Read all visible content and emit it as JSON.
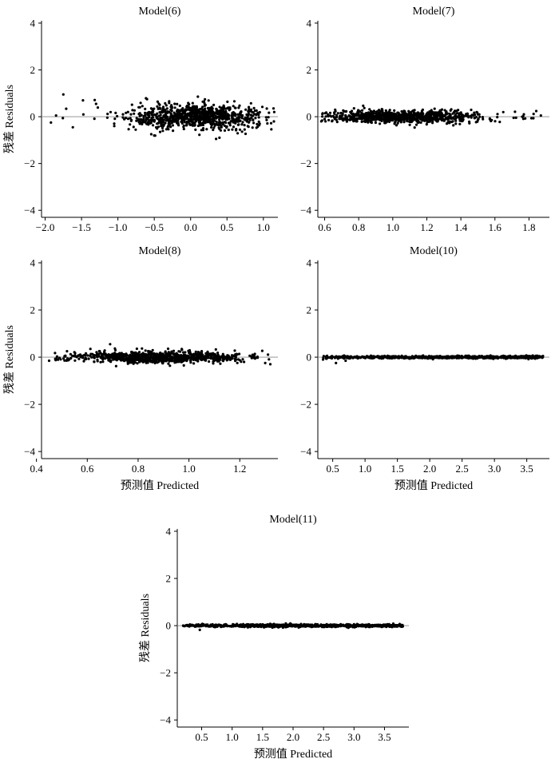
{
  "chart_data": [
    {
      "type": "scatter",
      "title": "Model(6)",
      "ylabel": "残差 Residuals",
      "xlabel": "",
      "xlim": [
        -2.05,
        1.2
      ],
      "ylim": [
        -4.3,
        4.1
      ],
      "xticks": [
        -2.0,
        -1.5,
        -1.0,
        -0.5,
        0.0,
        0.5,
        1.0
      ],
      "xtick_labels": [
        "−2.0",
        "−1.5",
        "−1.0",
        "−0.5",
        "0.0",
        "0.5",
        "1.0"
      ],
      "yticks": [
        -4,
        -2,
        0,
        2,
        4
      ],
      "ytick_labels": [
        "−4",
        "−2",
        "0",
        "2",
        "4"
      ],
      "reference_line_y": 0,
      "points_summary": {
        "count": 900,
        "x_range": [
          -1.95,
          1.15
        ],
        "center": 0.1,
        "spread": 0.45,
        "residual_amplitude": 0.6
      },
      "points": [
        {
          "x": -1.75,
          "y": 0.95
        },
        {
          "x": -1.92,
          "y": -0.25
        },
        {
          "x": -1.85,
          "y": 0.05
        },
        {
          "x": -1.48,
          "y": 0.7
        },
        {
          "x": -0.42,
          "y": -0.65
        },
        {
          "x": 0.35,
          "y": -0.95
        },
        {
          "x": -1.05,
          "y": -0.4
        },
        {
          "x": -0.6,
          "y": 0.75
        },
        {
          "x": 1.15,
          "y": 0.2
        },
        {
          "x": 0.95,
          "y": -0.3
        },
        {
          "x": -1.3,
          "y": 0.55
        },
        {
          "x": -1.62,
          "y": -0.45
        }
      ]
    },
    {
      "type": "scatter",
      "title": "Model(7)",
      "ylabel": "",
      "xlabel": "",
      "xlim": [
        0.56,
        1.92
      ],
      "ylim": [
        -4.3,
        4.1
      ],
      "xticks": [
        0.6,
        0.8,
        1.0,
        1.2,
        1.4,
        1.6,
        1.8
      ],
      "xtick_labels": [
        "0.6",
        "0.8",
        "1.0",
        "1.2",
        "1.4",
        "1.6",
        "1.8"
      ],
      "yticks": [
        -4,
        -2,
        0,
        2,
        4
      ],
      "ytick_labels": [
        "−4",
        "−2",
        "0",
        "2",
        "4"
      ],
      "reference_line_y": 0,
      "points_summary": {
        "count": 900,
        "x_range": [
          0.58,
          1.87
        ],
        "center": 1.05,
        "spread": 0.22,
        "residual_amplitude": 0.28
      },
      "points": [
        {
          "x": 1.87,
          "y": 0.05
        },
        {
          "x": 1.76,
          "y": 0.0
        },
        {
          "x": 1.71,
          "y": -0.05
        },
        {
          "x": 0.58,
          "y": -0.2
        },
        {
          "x": 0.6,
          "y": -0.1
        },
        {
          "x": 1.1,
          "y": -0.35
        }
      ]
    },
    {
      "type": "scatter",
      "title": "Model(8)",
      "ylabel": "残差 Residuals",
      "xlabel": "预测值 Predicted",
      "xlim": [
        0.42,
        1.35
      ],
      "ylim": [
        -4.3,
        4.1
      ],
      "xticks": [
        0.4,
        0.6,
        0.8,
        1.0,
        1.2
      ],
      "xtick_labels": [
        "0.4",
        "0.6",
        "0.8",
        "1.0",
        "1.2"
      ],
      "yticks": [
        -4,
        -2,
        0,
        2,
        4
      ],
      "ytick_labels": [
        "−4",
        "−2",
        "0",
        "2",
        "4"
      ],
      "reference_line_y": 0,
      "points_summary": {
        "count": 900,
        "x_range": [
          0.45,
          1.32
        ],
        "center": 0.88,
        "spread": 0.17,
        "residual_amplitude": 0.25
      },
      "points": [
        {
          "x": 0.69,
          "y": 0.55
        },
        {
          "x": 1.32,
          "y": -0.3
        },
        {
          "x": 1.3,
          "y": -0.25
        },
        {
          "x": 0.45,
          "y": -0.15
        },
        {
          "x": 1.25,
          "y": 0.1
        },
        {
          "x": 0.98,
          "y": -0.35
        }
      ]
    },
    {
      "type": "scatter",
      "title": "Model(10)",
      "ylabel": "",
      "xlabel": "预测值 Predicted",
      "xlim": [
        0.27,
        3.85
      ],
      "ylim": [
        -4.3,
        4.1
      ],
      "xticks": [
        0.5,
        1.0,
        1.5,
        2.0,
        2.5,
        3.0,
        3.5
      ],
      "xtick_labels": [
        "0.5",
        "1.0",
        "1.5",
        "2.0",
        "2.5",
        "3.0",
        "3.5"
      ],
      "yticks": [
        -4,
        -2,
        0,
        2,
        4
      ],
      "ytick_labels": [
        "−4",
        "−2",
        "0",
        "2",
        "4"
      ],
      "reference_line_y": 0,
      "points_summary": {
        "count": 900,
        "x_range": [
          0.35,
          3.75
        ],
        "residual_amplitude": 0.06
      },
      "points": [
        {
          "x": 0.55,
          "y": -0.25
        },
        {
          "x": 0.35,
          "y": -0.1
        },
        {
          "x": 0.7,
          "y": -0.15
        },
        {
          "x": 3.75,
          "y": 0.05
        }
      ]
    },
    {
      "type": "scatter",
      "title": "Model(11)",
      "ylabel": "残差 Residuals",
      "xlabel": "预测值 Predicted",
      "xlim": [
        0.1,
        3.9
      ],
      "ylim": [
        -4.3,
        4.1
      ],
      "xticks": [
        0.5,
        1.0,
        1.5,
        2.0,
        2.5,
        3.0,
        3.5
      ],
      "xtick_labels": [
        "0.5",
        "1.0",
        "1.5",
        "2.0",
        "2.5",
        "3.0",
        "3.5"
      ],
      "yticks": [
        -4,
        -2,
        0,
        2,
        4
      ],
      "ytick_labels": [
        "−4",
        "−2",
        "0",
        "2",
        "4"
      ],
      "reference_line_y": 0,
      "points_summary": {
        "count": 900,
        "x_range": [
          0.15,
          3.8
        ],
        "residual_amplitude": 0.06
      },
      "points": [
        {
          "x": 0.47,
          "y": -0.18
        },
        {
          "x": 0.25,
          "y": 0.02
        },
        {
          "x": 0.7,
          "y": -0.05
        },
        {
          "x": 3.8,
          "y": -0.03
        }
      ]
    }
  ]
}
